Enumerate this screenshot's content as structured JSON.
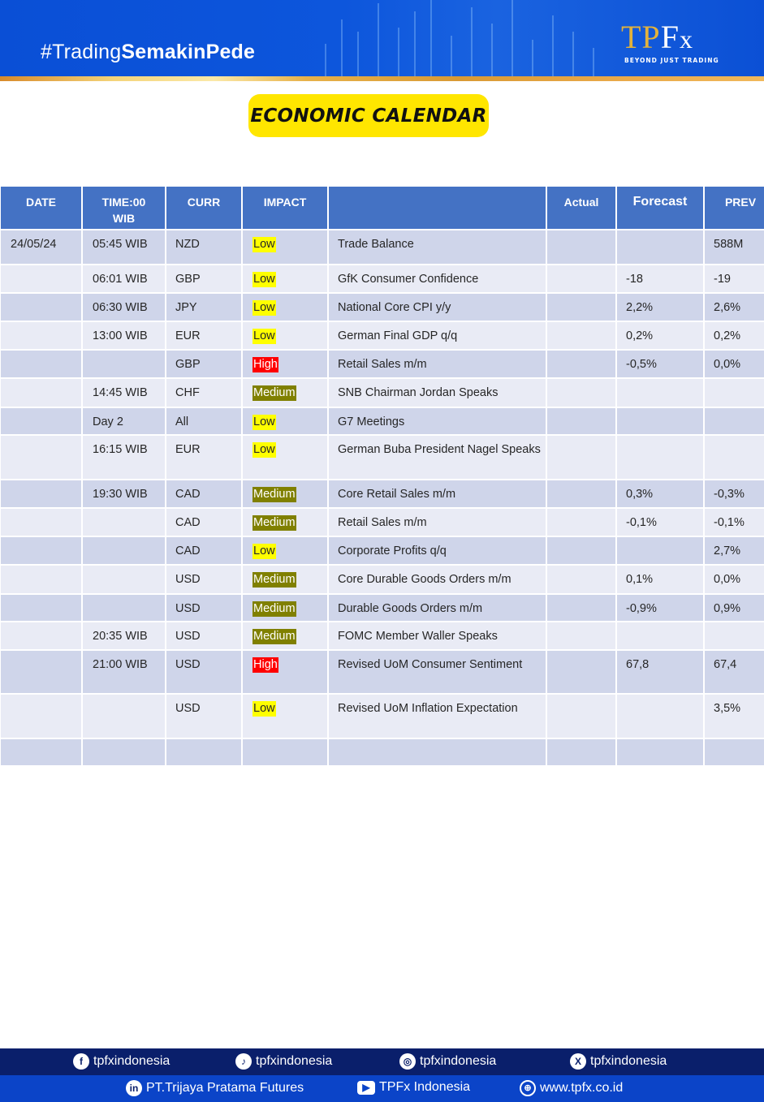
{
  "header": {
    "hashtag_light": "#Trading",
    "hashtag_bold": "SemakinPede",
    "logo": {
      "mark_gold": "TP",
      "mark_white": "F",
      "mark_x": "x",
      "tagline": "BEYOND JUST TRADING"
    }
  },
  "title": "ECONOMIC CALENDAR",
  "colors": {
    "header_blue": "#0a4fd6",
    "table_header": "#4472c4",
    "row_odd": "#cfd5ea",
    "row_even": "#e9ebf5",
    "impact_low": "#ffff00",
    "impact_medium": "#808000",
    "impact_high": "#ff0000",
    "title_yellow": "#ffe600"
  },
  "table": {
    "headers": {
      "date": "DATE",
      "time_line1": "TIME:00",
      "time_line2": "WIB",
      "curr": "CURR",
      "impact": "IMPACT",
      "event": "",
      "actual": "Actual",
      "forecast": "Forecast",
      "prev": "PREV"
    },
    "rows": [
      {
        "date": "24/05/24",
        "time": "05:45 WIB",
        "curr": "NZD",
        "impact": "Low",
        "event": "Trade Balance",
        "actual": "",
        "forecast": "",
        "prev": "588M"
      },
      {
        "date": "",
        "time": "06:01 WIB",
        "curr": "GBP",
        "impact": "Low",
        "event": "GfK Consumer Confidence",
        "actual": "",
        "forecast": "-18",
        "prev": "-19"
      },
      {
        "date": "",
        "time": "06:30 WIB",
        "curr": "JPY",
        "impact": "Low",
        "event": "National Core CPI y/y",
        "actual": "",
        "forecast": "2,2%",
        "prev": "2,6%"
      },
      {
        "date": "",
        "time": "13:00 WIB",
        "curr": "EUR",
        "impact": "Low",
        "event": "German Final GDP q/q",
        "actual": "",
        "forecast": "0,2%",
        "prev": "0,2%"
      },
      {
        "date": "",
        "time": "",
        "curr": "GBP",
        "impact": "High",
        "event": "Retail Sales m/m",
        "actual": "",
        "forecast": "-0,5%",
        "prev": "0,0%"
      },
      {
        "date": "",
        "time": "14:45 WIB",
        "curr": "CHF",
        "impact": "Medium",
        "event": "SNB Chairman Jordan Speaks",
        "actual": "",
        "forecast": "",
        "prev": ""
      },
      {
        "date": "",
        "time": "Day 2",
        "curr": "All",
        "impact": "Low",
        "event": "G7 Meetings",
        "actual": "",
        "forecast": "",
        "prev": ""
      },
      {
        "date": "",
        "time": "16:15 WIB",
        "curr": "EUR",
        "impact": "Low",
        "event": "German Buba President Nagel Speaks",
        "actual": "",
        "forecast": "",
        "prev": ""
      },
      {
        "date": "",
        "time": "19:30 WIB",
        "curr": "CAD",
        "impact": "Medium",
        "event": "Core Retail Sales m/m",
        "actual": "",
        "forecast": "0,3%",
        "prev": "-0,3%"
      },
      {
        "date": "",
        "time": "",
        "curr": "CAD",
        "impact": "Medium",
        "event": "Retail Sales m/m",
        "actual": "",
        "forecast": "-0,1%",
        "prev": "-0,1%"
      },
      {
        "date": "",
        "time": "",
        "curr": "CAD",
        "impact": "Low",
        "event": "Corporate Profits q/q",
        "actual": "",
        "forecast": "",
        "prev": "2,7%"
      },
      {
        "date": "",
        "time": "",
        "curr": "USD",
        "impact": "Medium",
        "event": "Core Durable Goods Orders m/m",
        "actual": "",
        "forecast": "0,1%",
        "prev": "0,0%"
      },
      {
        "date": "",
        "time": "",
        "curr": "USD",
        "impact": "Medium",
        "event": "Durable Goods Orders m/m",
        "actual": "",
        "forecast": "-0,9%",
        "prev": "0,9%"
      },
      {
        "date": "",
        "time": "20:35 WIB",
        "curr": "USD",
        "impact": "Medium",
        "event": "FOMC Member Waller Speaks",
        "actual": "",
        "forecast": "",
        "prev": ""
      },
      {
        "date": "",
        "time": "21:00 WIB",
        "curr": "USD",
        "impact": "High",
        "event": "Revised UoM Consumer Sentiment",
        "actual": "",
        "forecast": "67,8",
        "prev": "67,4"
      },
      {
        "date": "",
        "time": "",
        "curr": "USD",
        "impact": "Low",
        "event": "Revised UoM Inflation Expectation",
        "actual": "",
        "forecast": "",
        "prev": "3,5%"
      },
      {
        "date": "",
        "time": "",
        "curr": "",
        "impact": "",
        "event": "",
        "actual": "",
        "forecast": "",
        "prev": ""
      }
    ]
  },
  "footer": {
    "social_row1": [
      {
        "icon": "facebook-icon",
        "glyph": "f",
        "label": "tpfxindonesia"
      },
      {
        "icon": "tiktok-icon",
        "glyph": "♪",
        "label": "tpfxindonesia"
      },
      {
        "icon": "instagram-icon",
        "glyph": "◎",
        "label": "tpfxindonesia"
      },
      {
        "icon": "x-icon",
        "glyph": "X",
        "label": "tpfxindonesia"
      }
    ],
    "social_row2": [
      {
        "icon": "linkedin-icon",
        "glyph": "in",
        "label": "PT.Trijaya Pratama Futures"
      },
      {
        "icon": "youtube-icon",
        "glyph": "▶",
        "label": "TPFx Indonesia"
      },
      {
        "icon": "globe-icon",
        "glyph": "⊕",
        "label": "www.tpfx.co.id"
      }
    ]
  }
}
